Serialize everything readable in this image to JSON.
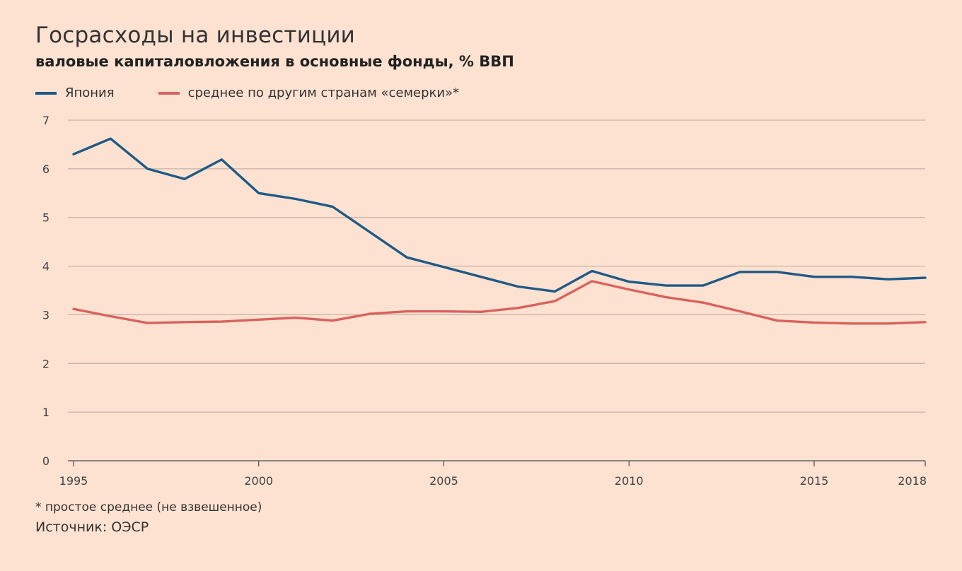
{
  "title": "Госрасходы на инвестиции",
  "subtitle": "валовые капиталовложения в основные фонды, % ВВП",
  "footnote": "* простое среднее (не взвешенное)",
  "source": "Источник: ОЭСР",
  "chart_data": {
    "type": "line",
    "ylim": [
      0,
      7
    ],
    "yticks": [
      "0",
      "1",
      "2",
      "3",
      "4",
      "5",
      "6",
      "7"
    ],
    "xlim": [
      1995,
      2018
    ],
    "xticks": [
      "1995",
      "2000",
      "2005",
      "2010",
      "2015",
      "2018"
    ],
    "grid": true,
    "legend_position": "top-left",
    "x": [
      1995,
      1996,
      1997,
      1998,
      1999,
      2000,
      2001,
      2002,
      2003,
      2004,
      2005,
      2006,
      2007,
      2008,
      2009,
      2010,
      2011,
      2012,
      2013,
      2014,
      2015,
      2016,
      2017,
      2018
    ],
    "series": [
      {
        "name": "Япония",
        "color": "#1f5a87",
        "values": [
          6.3,
          6.62,
          6.0,
          5.79,
          6.19,
          5.5,
          5.38,
          5.22,
          4.7,
          4.18,
          3.98,
          3.78,
          3.58,
          3.48,
          3.9,
          3.68,
          3.6,
          3.6,
          3.88,
          3.88,
          3.78,
          3.78,
          3.73,
          3.76
        ]
      },
      {
        "name": "среднее по другим странам «семерки»*",
        "color": "#d9625f",
        "values": [
          3.12,
          2.97,
          2.83,
          2.85,
          2.86,
          2.9,
          2.94,
          2.88,
          3.02,
          3.07,
          3.07,
          3.06,
          3.14,
          3.28,
          3.69,
          3.52,
          3.36,
          3.25,
          3.07,
          2.88,
          2.84,
          2.82,
          2.82,
          2.85
        ]
      }
    ]
  }
}
